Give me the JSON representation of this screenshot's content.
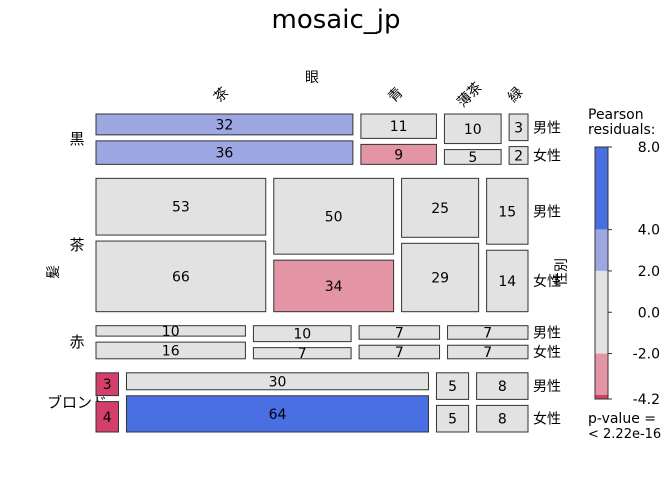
{
  "chart_data": {
    "type": "mosaic",
    "title": "mosaic_jp",
    "dimensions": {
      "row_variable": "髪",
      "column_variable": "眼",
      "split_variable": "性別"
    },
    "hair": [
      "黒",
      "茶",
      "赤",
      "ブロンド"
    ],
    "eye": [
      "茶",
      "青",
      "薄茶",
      "緑"
    ],
    "sex": [
      "男性",
      "女性"
    ],
    "counts": {
      "黒": {
        "男性": [
          32,
          11,
          10,
          3
        ],
        "女性": [
          36,
          9,
          5,
          2
        ]
      },
      "茶": {
        "男性": [
          53,
          50,
          25,
          15
        ],
        "女性": [
          66,
          34,
          29,
          14
        ]
      },
      "赤": {
        "男性": [
          10,
          10,
          7,
          7
        ],
        "女性": [
          16,
          7,
          7,
          7
        ]
      },
      "ブロンド": {
        "男性": [
          3,
          30,
          5,
          8
        ],
        "女性": [
          4,
          64,
          5,
          8
        ]
      }
    },
    "shading": {
      "黒": {
        "男性": [
          "pos2",
          "none",
          "none",
          "none"
        ],
        "女性": [
          "pos2",
          "neg2",
          "none",
          "none"
        ]
      },
      "茶": {
        "男性": [
          "none",
          "none",
          "none",
          "none"
        ],
        "女性": [
          "none",
          "neg2",
          "none",
          "none"
        ]
      },
      "赤": {
        "男性": [
          "none",
          "none",
          "none",
          "none"
        ],
        "女性": [
          "none",
          "none",
          "none",
          "none"
        ]
      },
      "ブロンド": {
        "男性": [
          "neg4",
          "none",
          "none",
          "none"
        ],
        "女性": [
          "neg4",
          "pos4",
          "none",
          "none"
        ]
      }
    },
    "legend": {
      "title_line1": "Pearson",
      "title_line2": "residuals:",
      "ticks": [
        "8.0",
        "4.0",
        "2.0",
        "0.0",
        "-2.0",
        "-4.2"
      ],
      "tick_values": [
        8.0,
        4.0,
        2.0,
        0.0,
        -2.0,
        -4.2
      ],
      "range": [
        -4.2,
        8.0
      ],
      "pvalue_line1": "p-value =",
      "pvalue_line2": "< 2.22e-16",
      "colors": {
        "pos4": "#4A6FE3",
        "pos2": "#9DA8E2",
        "none": "#E2E2E2",
        "neg2": "#E495A5",
        "neg4": "#D33F6A"
      }
    }
  }
}
